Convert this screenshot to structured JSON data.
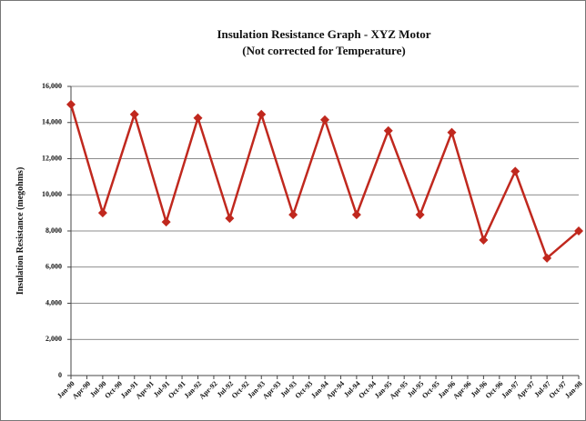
{
  "chart_data": {
    "type": "line",
    "title": "Insulation Resistance Graph - XYZ Motor",
    "subtitle": "(Not corrected for Temperature)",
    "y_label": "Insulation Resistance (megohms)",
    "categories": [
      "Jan-90",
      "Apr-90",
      "Jul-90",
      "Oct-90",
      "Jan-91",
      "Apr-91",
      "Jul-91",
      "Oct-91",
      "Jan-92",
      "Apr-92",
      "Jul-92",
      "Oct-92",
      "Jan-93",
      "Apr-93",
      "Jul-93",
      "Oct-93",
      "Jan-94",
      "Apr-94",
      "Jul-94",
      "Oct-94",
      "Jan-95",
      "Apr-95",
      "Jul-95",
      "Oct-95",
      "Jan-96",
      "Apr-96",
      "Jul-96",
      "Oct-96",
      "Jan-97",
      "Apr-97",
      "Jul-97",
      "Oct-97",
      "Jan-98"
    ],
    "series": [
      {
        "color": "#c0281e",
        "x": [
          "Jan-90",
          "Jul-90",
          "Jan-91",
          "Jul-91",
          "Jan-92",
          "Jul-92",
          "Jan-93",
          "Jul-93",
          "Jan-94",
          "Jul-94",
          "Jan-95",
          "Jul-95",
          "Jan-96",
          "Jul-96",
          "Jan-97",
          "Jul-97",
          "Jan-98"
        ],
        "values": [
          15000,
          9000,
          14450,
          8500,
          14250,
          8700,
          14450,
          8900,
          14150,
          8900,
          13550,
          8900,
          13450,
          7500,
          11300,
          6500,
          8000
        ]
      }
    ],
    "ylim": [
      0,
      16000
    ],
    "yticks": [
      0,
      {
        "value": 2000,
        "label": "2,000"
      },
      {
        "value": 4000,
        "label": "4,000"
      },
      {
        "value": 6000,
        "label": "6,000"
      },
      {
        "value": 8000,
        "label": "8,000"
      },
      {
        "value": 10000,
        "label": "10,000"
      },
      {
        "value": 12000,
        "label": "12,000"
      },
      {
        "value": 14000,
        "label": "14,000"
      },
      {
        "value": 16000,
        "label": "16,000"
      }
    ],
    "grid": true
  }
}
